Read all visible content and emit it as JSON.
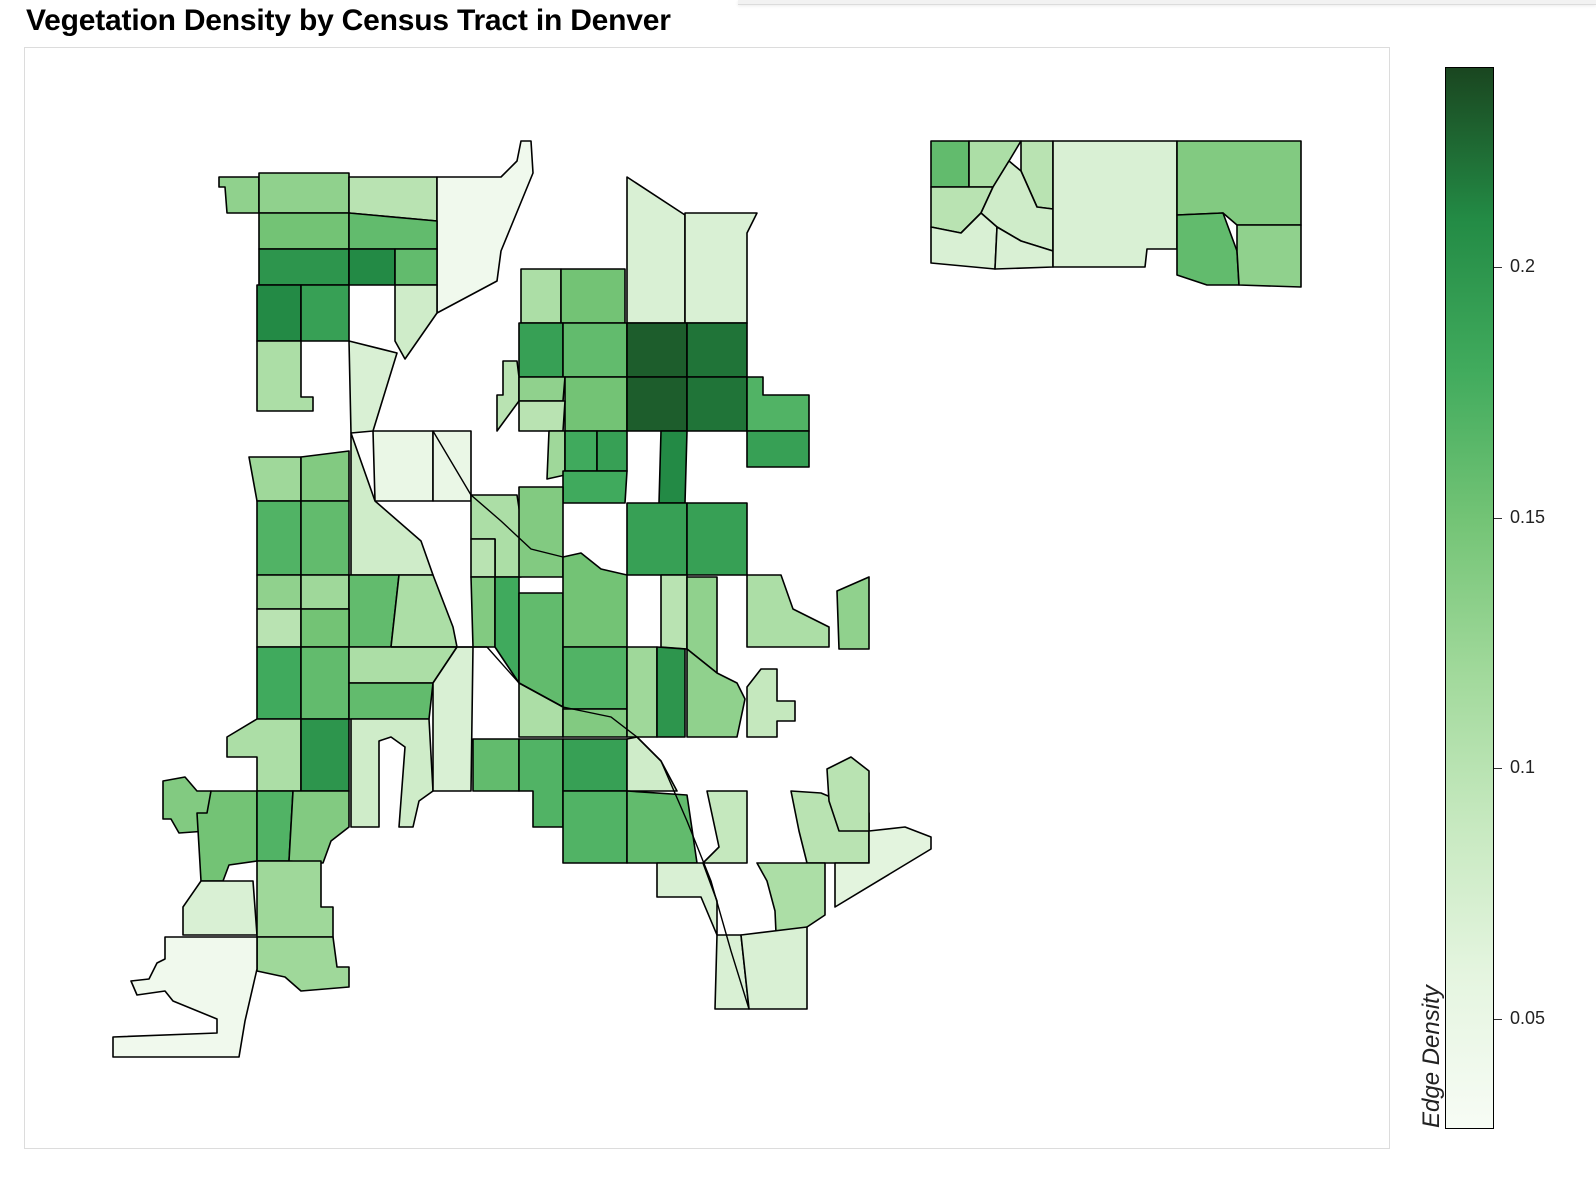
{
  "title": "Vegetation Density by Census Tract in Denver",
  "legend": {
    "title": "Edge Density",
    "min": 0.028,
    "max": 0.24,
    "ticks": [
      {
        "value": 0.05,
        "label": "0.05"
      },
      {
        "value": 0.1,
        "label": "0.1"
      },
      {
        "value": 0.15,
        "label": "0.15"
      },
      {
        "value": 0.2,
        "label": "0.2"
      }
    ],
    "color_low": "#f7fcf5",
    "color_high": "#1a4620",
    "stops": [
      "#f7fcf5",
      "#e5f5e0",
      "#c7e9c0",
      "#a1d99b",
      "#74c476",
      "#41ab5d",
      "#238b45",
      "#1a4620"
    ]
  },
  "colors": {
    "border": "#000000",
    "panel_border": "#dcdcdc",
    "background": "#ffffff"
  }
}
